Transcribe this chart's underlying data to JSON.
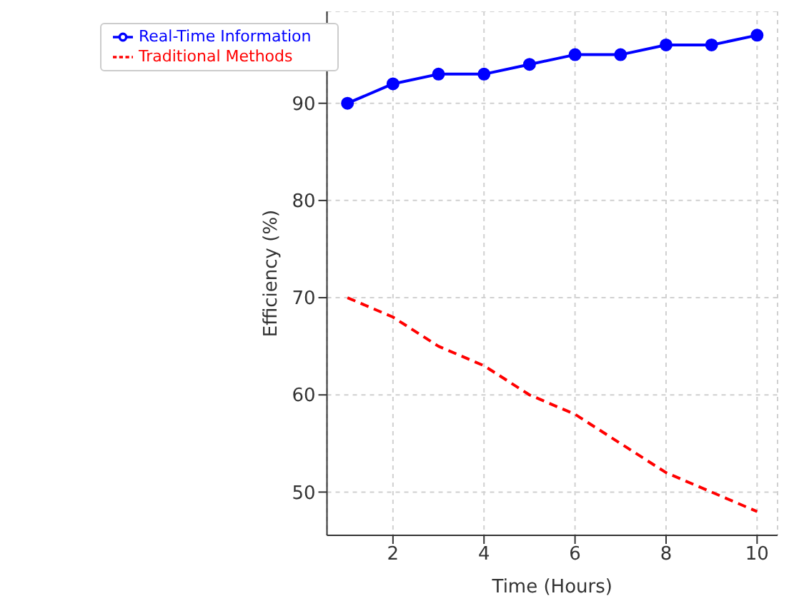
{
  "chart_data": {
    "type": "line",
    "xlabel": "Time (Hours)",
    "ylabel": "Efficiency (%)",
    "x": [
      1,
      2,
      3,
      4,
      5,
      6,
      7,
      8,
      9,
      10
    ],
    "series": [
      {
        "name": "Real-Time Information",
        "color": "#0000ff",
        "marker": "circle",
        "line_style": "solid",
        "values": [
          90,
          92,
          93,
          93,
          94,
          95,
          95,
          96,
          96,
          97
        ]
      },
      {
        "name": "Traditional Methods",
        "color": "#ff0000",
        "marker": "none",
        "line_style": "dashed",
        "values": [
          70,
          68,
          65,
          63,
          60,
          58,
          55,
          52,
          50,
          48
        ]
      }
    ],
    "xlim": [
      0.55,
      10.45
    ],
    "ylim": [
      45.55,
      99.45
    ],
    "xticks": [
      2,
      4,
      6,
      8,
      10
    ],
    "yticks": [
      50,
      60,
      70,
      80,
      90
    ],
    "grid": true,
    "legend": "top left"
  }
}
